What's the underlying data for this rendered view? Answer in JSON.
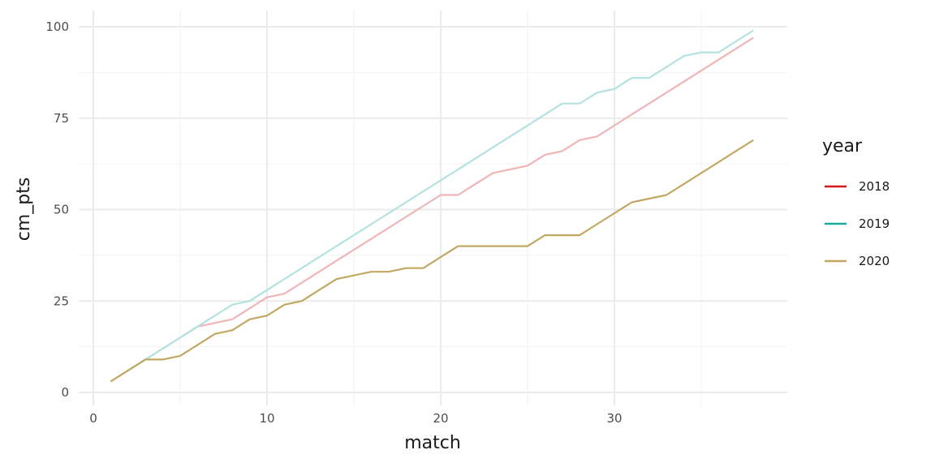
{
  "chart_data": {
    "type": "line",
    "xlabel": "match",
    "ylabel": "cm_pts",
    "xlim": [
      0,
      40
    ],
    "ylim": [
      0,
      100
    ],
    "x_ticks": [
      0,
      10,
      20,
      30
    ],
    "x_tick_labels": [
      "0",
      "10",
      "20",
      "30"
    ],
    "y_ticks": [
      0,
      25,
      50,
      75,
      100
    ],
    "y_tick_labels": [
      "0",
      "25",
      "50",
      "75",
      "100"
    ],
    "grid": true,
    "legend_title": "year",
    "legend_position": "right",
    "series": [
      {
        "name": "2018",
        "legend_color": "#d7191c",
        "line_color": "#f0b5b7",
        "x": [
          1,
          2,
          3,
          4,
          5,
          6,
          7,
          8,
          9,
          10,
          11,
          12,
          13,
          14,
          15,
          16,
          17,
          18,
          19,
          20,
          21,
          22,
          23,
          24,
          25,
          26,
          27,
          28,
          29,
          30,
          31,
          32,
          33,
          34,
          35,
          36,
          37,
          38
        ],
        "values": [
          3,
          6,
          9,
          12,
          15,
          18,
          19,
          20,
          23,
          26,
          27,
          30,
          33,
          36,
          39,
          42,
          45,
          48,
          51,
          54,
          54,
          57,
          60,
          61,
          62,
          65,
          66,
          69,
          70,
          73,
          76,
          79,
          82,
          85,
          88,
          91,
          94,
          97
        ]
      },
      {
        "name": "2019",
        "legend_color": "#1aab9b",
        "line_color": "#b3e2e0",
        "x": [
          1,
          2,
          3,
          4,
          5,
          6,
          7,
          8,
          9,
          10,
          11,
          12,
          13,
          14,
          15,
          16,
          17,
          18,
          19,
          20,
          21,
          22,
          23,
          24,
          25,
          26,
          27,
          28,
          29,
          30,
          31,
          32,
          33,
          34,
          35,
          36,
          37,
          38
        ],
        "values": [
          3,
          6,
          9,
          12,
          15,
          18,
          21,
          24,
          25,
          28,
          31,
          34,
          37,
          40,
          43,
          46,
          49,
          52,
          55,
          58,
          61,
          64,
          67,
          70,
          73,
          76,
          79,
          79,
          82,
          83,
          86,
          86,
          89,
          92,
          93,
          93,
          96,
          99
        ]
      },
      {
        "name": "2020",
        "legend_color": "#c2a862",
        "line_color": "#c2a862",
        "x": [
          1,
          2,
          3,
          4,
          5,
          6,
          7,
          8,
          9,
          10,
          11,
          12,
          13,
          14,
          15,
          16,
          17,
          18,
          19,
          20,
          21,
          22,
          23,
          24,
          25,
          26,
          27,
          28,
          29,
          30,
          31,
          32,
          33,
          34,
          35,
          36,
          37,
          38
        ],
        "values": [
          3,
          6,
          9,
          9,
          10,
          13,
          16,
          17,
          20,
          21,
          24,
          25,
          28,
          31,
          32,
          33,
          33,
          34,
          34,
          37,
          40,
          40,
          40,
          40,
          40,
          43,
          43,
          43,
          46,
          49,
          52,
          53,
          54,
          57,
          60,
          63,
          66,
          69
        ]
      }
    ]
  }
}
